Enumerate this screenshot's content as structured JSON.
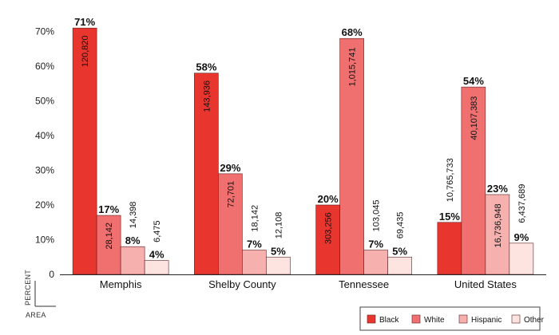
{
  "chart_data": {
    "type": "bar",
    "categories": [
      "Memphis",
      "Shelby County",
      "Tennessee",
      "United States"
    ],
    "series": [
      {
        "name": "Black",
        "color": "#e8352e",
        "values": [
          71,
          58,
          20,
          15
        ],
        "counts": [
          "120,820",
          "143,936",
          "303,256",
          "10,765,733"
        ]
      },
      {
        "name": "White",
        "color": "#f07070",
        "values": [
          17,
          29,
          68,
          54
        ],
        "counts": [
          "28,142",
          "72,701",
          "1,015,741",
          "40,107,383"
        ]
      },
      {
        "name": "Hispanic",
        "color": "#f6b0ae",
        "values": [
          8,
          7,
          7,
          23
        ],
        "counts": [
          "14,398",
          "18,142",
          "103,045",
          "16,736,948"
        ]
      },
      {
        "name": "Other",
        "color": "#fde4e1",
        "values": [
          4,
          5,
          5,
          9
        ],
        "counts": [
          "6,475",
          "12,108",
          "69,435",
          "6,437,689"
        ]
      }
    ],
    "y_ticks": [
      "0",
      "10%",
      "20%",
      "30%",
      "40%",
      "50%",
      "60%",
      "70%"
    ],
    "ylim": [
      0,
      70
    ],
    "value_suffix": "%",
    "ylabel": "PERCENT",
    "xlabel": "AREA",
    "legend_position": "bottom-right",
    "grid": false
  }
}
